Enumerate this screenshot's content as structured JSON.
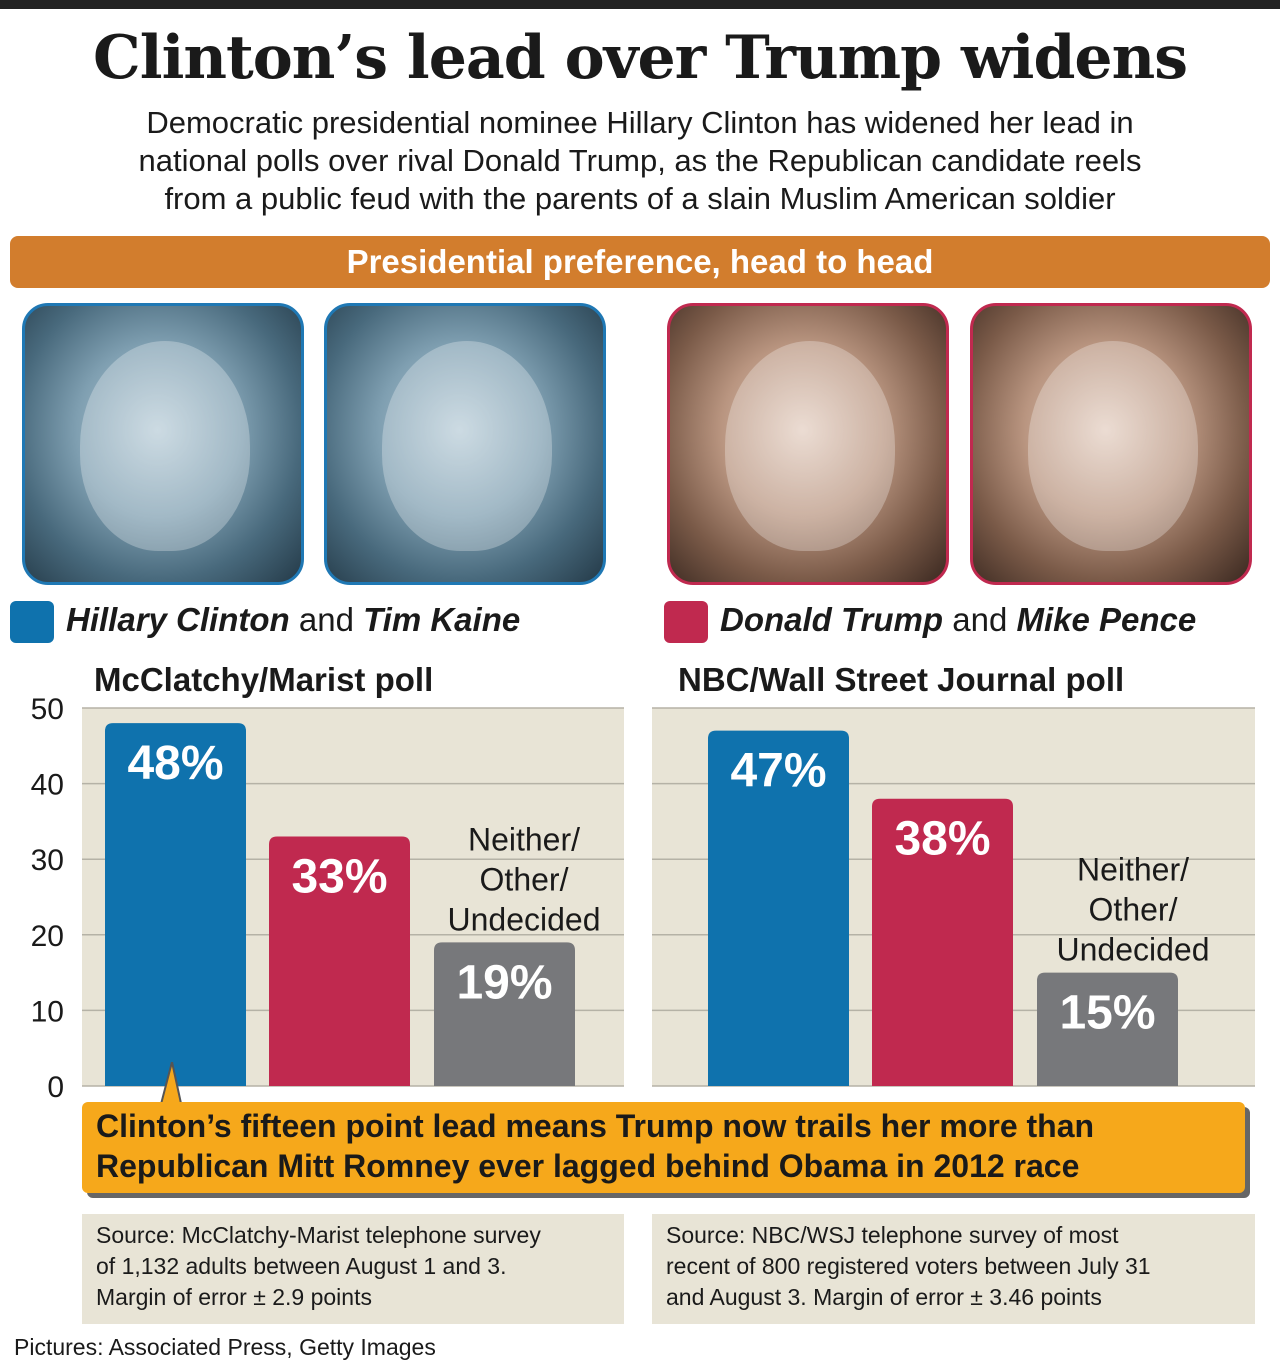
{
  "title": "Clinton’s lead over Trump widens",
  "subtitle": [
    "Democratic presidential nominee Hillary Clinton has widened her lead in",
    "national polls over rival Donald Trump, as the Republican candidate reels",
    "from a public feud with the parents of a slain Muslim American soldier"
  ],
  "banner": "Presidential preference, head to head",
  "legend": {
    "dem": {
      "name1": "Hillary Clinton",
      "and": "and",
      "name2": "Tim Kaine",
      "color": "#0f72ad"
    },
    "rep": {
      "name1": "Donald Trump",
      "and": "and",
      "name2": "Mike Pence",
      "color": "#c0294f"
    }
  },
  "callout": [
    "Clinton’s fifteen point lead means Trump now trails her more than",
    "Republican Mitt Romney ever lagged behind Obama in 2012 race"
  ],
  "sources": [
    [
      "Source: McClatchy-Marist telephone survey",
      "of 1,132 adults between August 1 and 3.",
      "Margin of error ± 2.9 points"
    ],
    [
      "Source: NBC/WSJ telephone survey of most",
      "recent of 800 registered voters between July 31",
      "and August 3. Margin of error ± 3.46 points"
    ]
  ],
  "credit": "Pictures: Associated Press, Getty Images",
  "chart_data": [
    {
      "type": "bar",
      "title": "McClatchy/Marist poll",
      "categories": [
        "Hillary Clinton and Tim Kaine",
        "Donald Trump and Mike Pence",
        "Neither/ Other/ Undecided"
      ],
      "values": [
        48,
        33,
        19
      ],
      "value_labels": [
        "48%",
        "33%",
        "19%"
      ],
      "category_label_lines": [
        "Neither/",
        "Other/",
        "Undecided"
      ],
      "colors": [
        "#0f72ad",
        "#c0294f",
        "#77787b"
      ],
      "ylim": [
        0,
        50
      ],
      "yticks": [
        0,
        10,
        20,
        30,
        40,
        50
      ],
      "grid": true
    },
    {
      "type": "bar",
      "title": "NBC/Wall Street Journal poll",
      "categories": [
        "Hillary Clinton and Tim Kaine",
        "Donald Trump and Mike Pence",
        "Neither/ Other/ Undecided"
      ],
      "values": [
        47,
        38,
        15
      ],
      "value_labels": [
        "47%",
        "38%",
        "15%"
      ],
      "category_label_lines": [
        "Neither/",
        "Other/",
        "Undecided"
      ],
      "colors": [
        "#0f72ad",
        "#c0294f",
        "#77787b"
      ],
      "ylim": [
        0,
        50
      ],
      "grid": true
    }
  ]
}
